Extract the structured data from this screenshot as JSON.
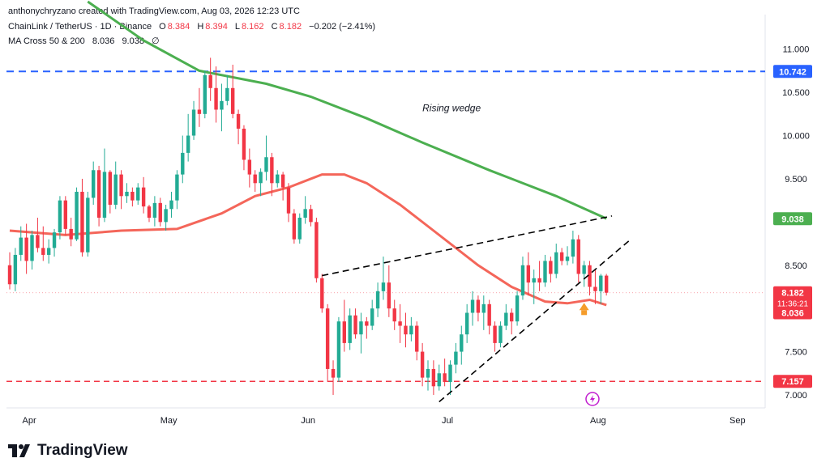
{
  "header": {
    "credit": "anthonychryzano created with TradingView.com, Aug 03, 2026 12:23 UTC"
  },
  "legend": {
    "symbol": "ChainLink / TetherUS · 1D · Binance",
    "o_label": "O",
    "o_value": "8.384",
    "h_label": "H",
    "h_value": "8.394",
    "l_label": "L",
    "l_value": "8.162",
    "c_label": "C",
    "c_value": "8.182",
    "change": "−0.202 (−2.41%)",
    "ma_label": "MA Cross 50 & 200",
    "ma_fast": "8.036",
    "ma_slow": "9.038",
    "ma_suffix": "∅"
  },
  "brand": {
    "name": "TradingView",
    "logo_icon": "tradingview-logo-icon"
  },
  "colors": {
    "up": "#22ab94",
    "down": "#f23645",
    "ma_fast": "#f4665a",
    "ma_slow": "#4caf50",
    "resistance": "#2962ff",
    "support": "#f23645",
    "wedge": "#000000",
    "marker": "#f59c2a",
    "axis_text": "#131722"
  },
  "chart_data": {
    "type": "candlestick",
    "title": "ChainLink / TetherUS · 1D · Binance",
    "ylim": [
      6.85,
      11.4
    ],
    "y_ticks": [
      "11.000",
      "10.500",
      "10.000",
      "9.500",
      "8.500",
      "7.500",
      "7.000"
    ],
    "x_ticks": [
      "Apr",
      "May",
      "Jun",
      "Jul",
      "Aug",
      "Sep"
    ],
    "candles": [
      {
        "o": 8.5,
        "h": 8.65,
        "l": 8.22,
        "c": 8.28
      },
      {
        "o": 8.28,
        "h": 8.7,
        "l": 8.2,
        "c": 8.62
      },
      {
        "o": 8.62,
        "h": 8.95,
        "l": 8.55,
        "c": 8.82
      },
      {
        "o": 8.82,
        "h": 8.98,
        "l": 8.4,
        "c": 8.55
      },
      {
        "o": 8.55,
        "h": 8.9,
        "l": 8.45,
        "c": 8.85
      },
      {
        "o": 8.85,
        "h": 9.05,
        "l": 8.65,
        "c": 8.7
      },
      {
        "o": 8.7,
        "h": 8.95,
        "l": 8.55,
        "c": 8.62
      },
      {
        "o": 8.62,
        "h": 8.8,
        "l": 8.52,
        "c": 8.7
      },
      {
        "o": 8.7,
        "h": 8.92,
        "l": 8.6,
        "c": 8.88
      },
      {
        "o": 8.88,
        "h": 9.3,
        "l": 8.8,
        "c": 9.25
      },
      {
        "o": 9.25,
        "h": 9.3,
        "l": 8.85,
        "c": 8.92
      },
      {
        "o": 8.92,
        "h": 9.05,
        "l": 8.72,
        "c": 8.8
      },
      {
        "o": 8.8,
        "h": 9.4,
        "l": 8.78,
        "c": 9.35
      },
      {
        "o": 9.35,
        "h": 9.5,
        "l": 8.6,
        "c": 8.65
      },
      {
        "o": 8.65,
        "h": 9.35,
        "l": 8.6,
        "c": 9.28
      },
      {
        "o": 9.28,
        "h": 9.7,
        "l": 9.2,
        "c": 9.6
      },
      {
        "o": 9.6,
        "h": 9.65,
        "l": 8.95,
        "c": 9.05
      },
      {
        "o": 9.05,
        "h": 9.85,
        "l": 9.0,
        "c": 9.58
      },
      {
        "o": 9.58,
        "h": 9.6,
        "l": 9.1,
        "c": 9.2
      },
      {
        "o": 9.2,
        "h": 9.7,
        "l": 9.15,
        "c": 9.55
      },
      {
        "o": 9.55,
        "h": 9.6,
        "l": 9.15,
        "c": 9.3
      },
      {
        "o": 9.3,
        "h": 9.45,
        "l": 9.22,
        "c": 9.35
      },
      {
        "o": 9.35,
        "h": 9.4,
        "l": 9.18,
        "c": 9.25
      },
      {
        "o": 9.25,
        "h": 9.45,
        "l": 9.2,
        "c": 9.4
      },
      {
        "o": 9.4,
        "h": 9.52,
        "l": 9.1,
        "c": 9.18
      },
      {
        "o": 9.18,
        "h": 9.2,
        "l": 9.0,
        "c": 9.05
      },
      {
        "o": 9.05,
        "h": 9.3,
        "l": 8.95,
        "c": 9.22
      },
      {
        "o": 9.22,
        "h": 9.28,
        "l": 8.95,
        "c": 9.0
      },
      {
        "o": 9.0,
        "h": 9.2,
        "l": 8.9,
        "c": 9.15
      },
      {
        "o": 9.15,
        "h": 9.35,
        "l": 9.05,
        "c": 9.25
      },
      {
        "o": 9.25,
        "h": 9.6,
        "l": 9.15,
        "c": 9.55
      },
      {
        "o": 9.55,
        "h": 10.0,
        "l": 9.45,
        "c": 9.8
      },
      {
        "o": 9.8,
        "h": 10.25,
        "l": 9.7,
        "c": 10.0
      },
      {
        "o": 10.0,
        "h": 10.4,
        "l": 9.95,
        "c": 10.3
      },
      {
        "o": 10.3,
        "h": 10.55,
        "l": 10.1,
        "c": 10.25
      },
      {
        "o": 10.25,
        "h": 10.75,
        "l": 10.2,
        "c": 10.7
      },
      {
        "o": 10.7,
        "h": 10.9,
        "l": 10.4,
        "c": 10.55
      },
      {
        "o": 10.55,
        "h": 10.8,
        "l": 10.15,
        "c": 10.3
      },
      {
        "o": 10.3,
        "h": 10.6,
        "l": 10.05,
        "c": 10.4
      },
      {
        "o": 10.4,
        "h": 10.7,
        "l": 10.35,
        "c": 10.55
      },
      {
        "o": 10.55,
        "h": 10.82,
        "l": 10.2,
        "c": 10.25
      },
      {
        "o": 10.25,
        "h": 10.3,
        "l": 9.9,
        "c": 10.08
      },
      {
        "o": 10.08,
        "h": 10.12,
        "l": 9.6,
        "c": 9.72
      },
      {
        "o": 9.72,
        "h": 9.85,
        "l": 9.4,
        "c": 9.55
      },
      {
        "o": 9.55,
        "h": 9.6,
        "l": 9.35,
        "c": 9.45
      },
      {
        "o": 9.45,
        "h": 9.62,
        "l": 9.3,
        "c": 9.58
      },
      {
        "o": 9.58,
        "h": 10.0,
        "l": 9.48,
        "c": 9.75
      },
      {
        "o": 9.75,
        "h": 9.8,
        "l": 9.3,
        "c": 9.45
      },
      {
        "o": 9.45,
        "h": 9.6,
        "l": 9.4,
        "c": 9.55
      },
      {
        "o": 9.55,
        "h": 9.58,
        "l": 9.25,
        "c": 9.4
      },
      {
        "o": 9.4,
        "h": 9.45,
        "l": 9.0,
        "c": 9.1
      },
      {
        "o": 9.1,
        "h": 9.15,
        "l": 8.75,
        "c": 8.8
      },
      {
        "o": 8.8,
        "h": 9.1,
        "l": 8.75,
        "c": 9.05
      },
      {
        "o": 9.05,
        "h": 9.3,
        "l": 8.98,
        "c": 9.15
      },
      {
        "o": 9.15,
        "h": 9.2,
        "l": 8.95,
        "c": 9.0
      },
      {
        "o": 9.0,
        "h": 9.05,
        "l": 8.3,
        "c": 8.35
      },
      {
        "o": 8.35,
        "h": 8.4,
        "l": 7.95,
        "c": 8.0
      },
      {
        "o": 8.0,
        "h": 8.05,
        "l": 7.15,
        "c": 7.3
      },
      {
        "o": 7.3,
        "h": 7.4,
        "l": 7.0,
        "c": 7.2
      },
      {
        "o": 7.2,
        "h": 7.9,
        "l": 7.15,
        "c": 7.85
      },
      {
        "o": 7.85,
        "h": 8.1,
        "l": 7.5,
        "c": 7.6
      },
      {
        "o": 7.6,
        "h": 8.0,
        "l": 7.52,
        "c": 7.92
      },
      {
        "o": 7.92,
        "h": 8.0,
        "l": 7.65,
        "c": 7.7
      },
      {
        "o": 7.7,
        "h": 7.95,
        "l": 7.48,
        "c": 7.85
      },
      {
        "o": 7.85,
        "h": 7.9,
        "l": 7.65,
        "c": 7.8
      },
      {
        "o": 7.8,
        "h": 8.1,
        "l": 7.75,
        "c": 8.0
      },
      {
        "o": 8.0,
        "h": 8.3,
        "l": 7.9,
        "c": 8.2
      },
      {
        "o": 8.2,
        "h": 8.6,
        "l": 8.1,
        "c": 8.3
      },
      {
        "o": 8.3,
        "h": 8.5,
        "l": 7.9,
        "c": 8.0
      },
      {
        "o": 8.0,
        "h": 8.1,
        "l": 7.75,
        "c": 7.85
      },
      {
        "o": 7.85,
        "h": 8.05,
        "l": 7.6,
        "c": 7.8
      },
      {
        "o": 7.8,
        "h": 7.95,
        "l": 7.55,
        "c": 7.7
      },
      {
        "o": 7.7,
        "h": 7.9,
        "l": 7.62,
        "c": 7.8
      },
      {
        "o": 7.8,
        "h": 7.85,
        "l": 7.4,
        "c": 7.5
      },
      {
        "o": 7.5,
        "h": 7.6,
        "l": 7.1,
        "c": 7.2
      },
      {
        "o": 7.2,
        "h": 7.4,
        "l": 7.05,
        "c": 7.3
      },
      {
        "o": 7.3,
        "h": 7.4,
        "l": 7.0,
        "c": 7.1
      },
      {
        "o": 7.1,
        "h": 7.35,
        "l": 7.05,
        "c": 7.25
      },
      {
        "o": 7.25,
        "h": 7.42,
        "l": 7.1,
        "c": 7.15
      },
      {
        "o": 7.15,
        "h": 7.4,
        "l": 7.0,
        "c": 7.35
      },
      {
        "o": 7.35,
        "h": 7.6,
        "l": 7.25,
        "c": 7.5
      },
      {
        "o": 7.5,
        "h": 7.8,
        "l": 7.35,
        "c": 7.7
      },
      {
        "o": 7.7,
        "h": 8.05,
        "l": 7.6,
        "c": 7.95
      },
      {
        "o": 7.95,
        "h": 8.2,
        "l": 7.8,
        "c": 8.1
      },
      {
        "o": 8.1,
        "h": 8.15,
        "l": 7.85,
        "c": 7.95
      },
      {
        "o": 7.95,
        "h": 8.15,
        "l": 7.75,
        "c": 8.05
      },
      {
        "o": 8.05,
        "h": 8.1,
        "l": 7.7,
        "c": 7.8
      },
      {
        "o": 7.8,
        "h": 7.85,
        "l": 7.5,
        "c": 7.6
      },
      {
        "o": 7.6,
        "h": 7.85,
        "l": 7.55,
        "c": 7.8
      },
      {
        "o": 7.8,
        "h": 8.05,
        "l": 7.75,
        "c": 7.95
      },
      {
        "o": 7.95,
        "h": 8.0,
        "l": 7.7,
        "c": 7.85
      },
      {
        "o": 7.85,
        "h": 8.2,
        "l": 7.8,
        "c": 8.15
      },
      {
        "o": 8.15,
        "h": 8.6,
        "l": 8.1,
        "c": 8.5
      },
      {
        "o": 8.5,
        "h": 8.65,
        "l": 8.15,
        "c": 8.3
      },
      {
        "o": 8.3,
        "h": 8.45,
        "l": 8.05,
        "c": 8.35
      },
      {
        "o": 8.35,
        "h": 8.55,
        "l": 8.2,
        "c": 8.3
      },
      {
        "o": 8.3,
        "h": 8.62,
        "l": 8.25,
        "c": 8.55
      },
      {
        "o": 8.55,
        "h": 8.6,
        "l": 8.3,
        "c": 8.4
      },
      {
        "o": 8.4,
        "h": 8.75,
        "l": 8.35,
        "c": 8.65
      },
      {
        "o": 8.65,
        "h": 8.7,
        "l": 8.5,
        "c": 8.55
      },
      {
        "o": 8.55,
        "h": 8.72,
        "l": 8.5,
        "c": 8.6
      },
      {
        "o": 8.6,
        "h": 8.9,
        "l": 8.52,
        "c": 8.8
      },
      {
        "o": 8.8,
        "h": 8.85,
        "l": 8.3,
        "c": 8.4
      },
      {
        "o": 8.4,
        "h": 8.55,
        "l": 8.25,
        "c": 8.5
      },
      {
        "o": 8.5,
        "h": 8.55,
        "l": 8.15,
        "c": 8.25
      },
      {
        "o": 8.25,
        "h": 8.45,
        "l": 8.05,
        "c": 8.2
      },
      {
        "o": 8.2,
        "h": 8.4,
        "l": 8.05,
        "c": 8.38
      },
      {
        "o": 8.38,
        "h": 8.4,
        "l": 8.15,
        "c": 8.182
      }
    ],
    "ma50": [
      [
        0,
        8.9
      ],
      [
        10,
        8.85
      ],
      [
        20,
        8.9
      ],
      [
        30,
        8.92
      ],
      [
        38,
        9.1
      ],
      [
        44,
        9.3
      ],
      [
        50,
        9.4
      ],
      [
        56,
        9.55
      ],
      [
        60,
        9.55
      ],
      [
        64,
        9.45
      ],
      [
        70,
        9.2
      ],
      [
        76,
        8.9
      ],
      [
        84,
        8.5
      ],
      [
        90,
        8.25
      ],
      [
        96,
        8.08
      ],
      [
        100,
        8.06
      ],
      [
        104,
        8.1
      ],
      [
        107,
        8.04
      ]
    ],
    "ma200": [
      [
        14,
        11.55
      ],
      [
        24,
        11.1
      ],
      [
        34,
        10.75
      ],
      [
        46,
        10.6
      ],
      [
        54,
        10.45
      ],
      [
        64,
        10.2
      ],
      [
        74,
        9.92
      ],
      [
        86,
        9.6
      ],
      [
        98,
        9.3
      ],
      [
        107,
        9.04
      ]
    ],
    "lines": {
      "resistance": 10.742,
      "support": 7.157,
      "wedge_upper": [
        [
          56,
          8.38
        ],
        [
          108,
          9.07
        ]
      ],
      "wedge_lower": [
        [
          77,
          6.92
        ],
        [
          111,
          8.78
        ]
      ]
    },
    "annotations": {
      "wedge_label": "Rising wedge"
    },
    "price_labels": {
      "resistance": "10.742",
      "ma_slow": "9.038",
      "last": "8.182",
      "countdown": "11:36:21",
      "ma_fast": "8.036",
      "support": "7.157"
    }
  }
}
